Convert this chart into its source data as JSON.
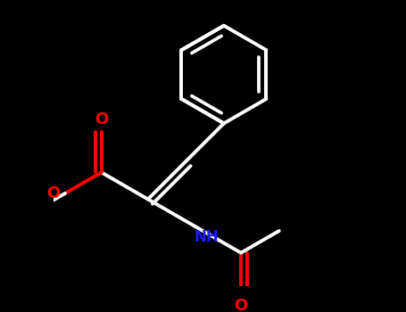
{
  "bg_color": "#000000",
  "bond_color": "#ffffff",
  "oxygen_color": "#ff0000",
  "nitrogen_color": "#1a1aff",
  "line_width": 2.8,
  "figsize": [
    4.55,
    3.5
  ],
  "dpi": 100,
  "xlim": [
    -2.5,
    2.5
  ],
  "ylim": [
    -2.0,
    2.8
  ]
}
